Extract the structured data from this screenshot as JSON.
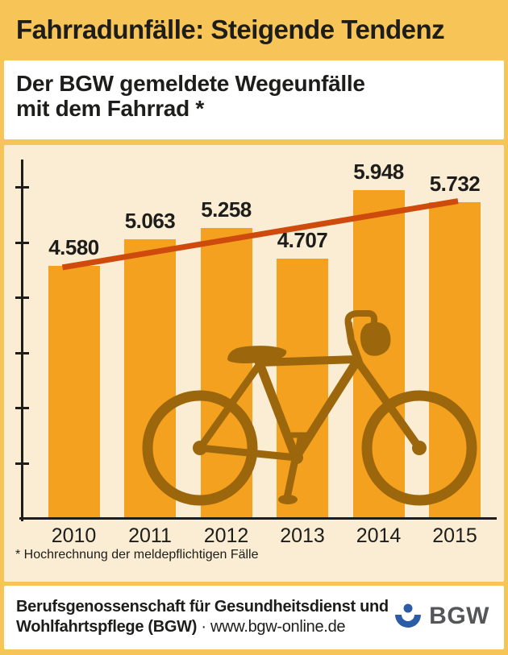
{
  "page": {
    "header_title": "Fahrradunfälle: Steigende Tendenz",
    "subtitle_line1": "Der BGW gemeldete Wegeunfälle",
    "subtitle_line2": "mit dem Fahrrad *",
    "footnote": "* Hochrechnung der meldepflichtigen Fälle"
  },
  "chart_data": {
    "type": "bar",
    "title": "Der BGW gemeldete Wegeunfälle mit dem Fahrrad *",
    "categories": [
      "2010",
      "2011",
      "2012",
      "2013",
      "2014",
      "2015"
    ],
    "values": [
      4580,
      5063,
      5258,
      4707,
      5948,
      5732
    ],
    "value_labels": [
      "4.580",
      "5.063",
      "5.258",
      "4.707",
      "5.948",
      "5.732"
    ],
    "xlabel": "",
    "ylabel": "",
    "ylim": [
      0,
      6500
    ],
    "ytick_interval": 1000,
    "ytick_labels_shown": false,
    "grid": false,
    "legend": false,
    "trendline": {
      "start_year": "2010",
      "start_value": 4550,
      "end_year": "2015",
      "end_value": 5750
    },
    "overlay_icon": "bicycle-silhouette",
    "footnote": "* Hochrechnung der meldepflichtigen Fälle"
  },
  "footer": {
    "org_line1": "Berufsgenossenschaft für Gesundheitsdienst und",
    "org_line2_bold": "Wohlfahrtspflege (BGW)",
    "separator": " · ",
    "url": "www.bgw-online.de",
    "logo_text": "BGW"
  },
  "colors": {
    "frame_gold": "#F7C557",
    "chart_cream": "#FAEDD3",
    "bar_orange": "#F4A11F",
    "trend_red": "#CE4A0D",
    "bicycle_brown": "#9C670C",
    "text_dark": "#1D1D1B",
    "panel_white": "#FFFFFF",
    "bgw_blue": "#2C5CA8",
    "bgw_gray": "#55565A"
  }
}
